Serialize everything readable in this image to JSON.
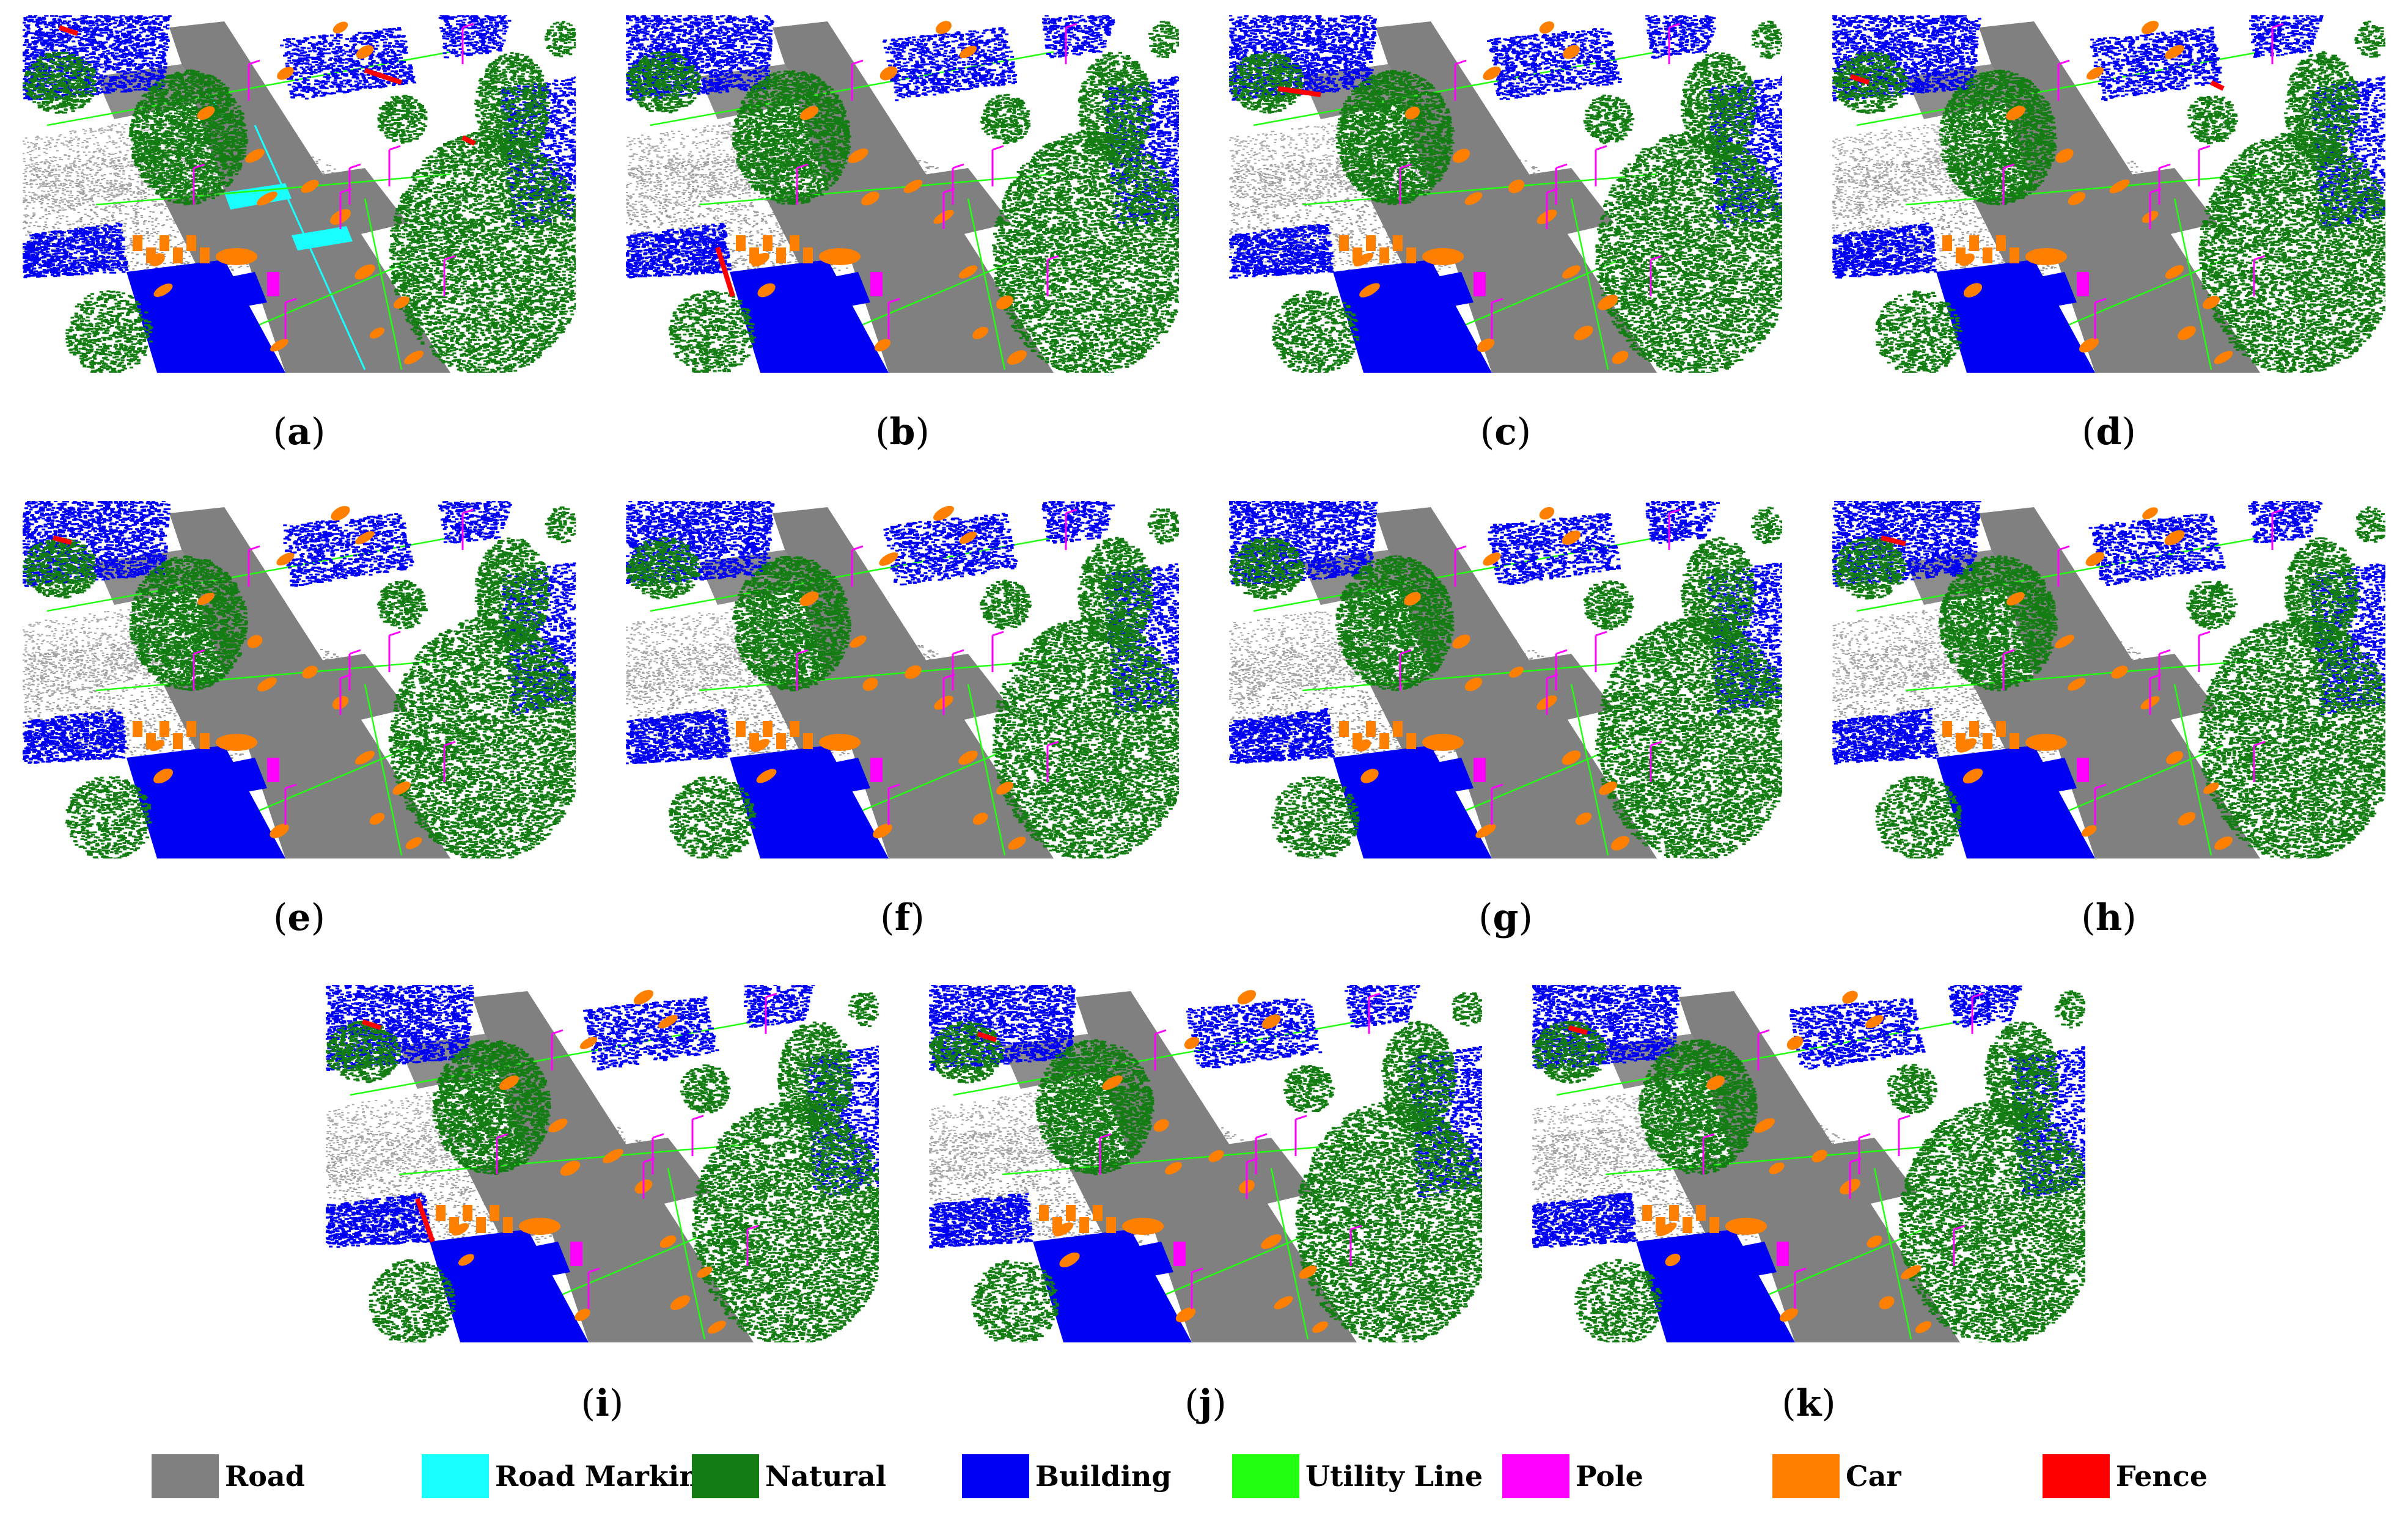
{
  "panels": [
    {
      "id": "a",
      "variant": "gt"
    },
    {
      "id": "b",
      "variant": "pred"
    },
    {
      "id": "c",
      "variant": "pred"
    },
    {
      "id": "d",
      "variant": "pred"
    },
    {
      "id": "e",
      "variant": "pred"
    },
    {
      "id": "f",
      "variant": "pred"
    },
    {
      "id": "g",
      "variant": "pred"
    },
    {
      "id": "h",
      "variant": "pred"
    },
    {
      "id": "i",
      "variant": "pred"
    },
    {
      "id": "j",
      "variant": "pred"
    },
    {
      "id": "k",
      "variant": "pred"
    }
  ],
  "legend": [
    {
      "label": "Road",
      "color": "#808080"
    },
    {
      "label": "Road Marking",
      "color": "#19ffff"
    },
    {
      "label": "Natural",
      "color": "#137d13"
    },
    {
      "label": "Building",
      "color": "#0000f5"
    },
    {
      "label": "Utility Line",
      "color": "#22ff11"
    },
    {
      "label": "Pole",
      "color": "#ff00ff"
    },
    {
      "label": "Car",
      "color": "#ff8000"
    },
    {
      "label": "Fence",
      "color": "#ff0000"
    }
  ]
}
